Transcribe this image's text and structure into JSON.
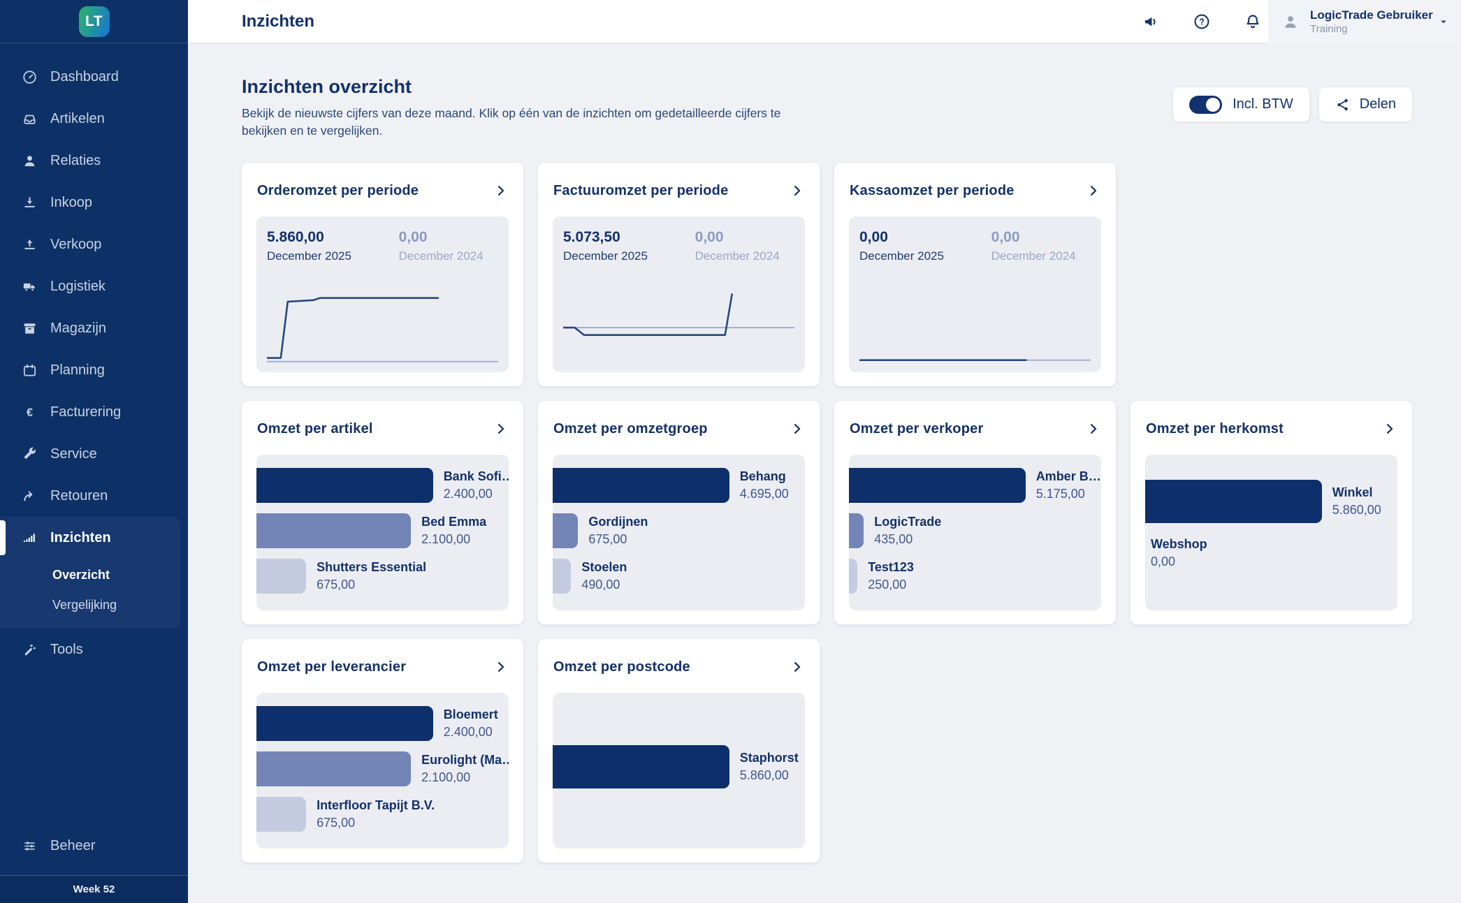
{
  "app": {
    "logo_text": "LT"
  },
  "topbar": {
    "title": "Inzichten",
    "icons": [
      "megaphone-icon",
      "help-icon",
      "bell-icon"
    ],
    "user": {
      "name": "LogicTrade Gebruiker",
      "role": "Training"
    }
  },
  "sidebar": {
    "items": [
      {
        "label": "Dashboard",
        "icon": "dashboard-icon"
      },
      {
        "label": "Artikelen",
        "icon": "inbox-icon"
      },
      {
        "label": "Relaties",
        "icon": "person-icon"
      },
      {
        "label": "Inkoop",
        "icon": "download-icon"
      },
      {
        "label": "Verkoop",
        "icon": "upload-icon"
      },
      {
        "label": "Logistiek",
        "icon": "truck-icon"
      },
      {
        "label": "Magazijn",
        "icon": "archive-icon"
      },
      {
        "label": "Planning",
        "icon": "calendar-icon"
      },
      {
        "label": "Facturering",
        "icon": "euro-icon"
      },
      {
        "label": "Service",
        "icon": "wrench-icon"
      },
      {
        "label": "Retouren",
        "icon": "redo-icon"
      },
      {
        "label": "Inzichten",
        "icon": "bar-chart-icon",
        "active": true,
        "children": [
          {
            "label": "Overzicht",
            "active": true
          },
          {
            "label": "Vergelijking"
          }
        ]
      },
      {
        "label": "Tools",
        "icon": "wand-icon"
      }
    ],
    "bottom_item": {
      "label": "Beheer",
      "icon": "sliders-icon"
    },
    "week_label": "Week 52"
  },
  "page": {
    "title": "Inzichten overzicht",
    "description": "Bekijk de nieuwste cijfers van deze maand. Klik op één van de inzichten om gedetailleerde cijfers te bekijken en te vergelijken.",
    "controls": {
      "toggle_label": "Incl. BTW",
      "toggle_on": true,
      "share_label": "Delen"
    }
  },
  "cards": {
    "row1": [
      {
        "title": "Orderomzet per periode",
        "current": {
          "value": "5.860,00",
          "period": "December 2025"
        },
        "previous": {
          "value": "0,00",
          "period": "December 2024"
        },
        "sparkline": {
          "current": [
            [
              0,
              92
            ],
            [
              6,
              92
            ],
            [
              9,
              16
            ],
            [
              20,
              14
            ],
            [
              23,
              11
            ],
            [
              74,
              11
            ]
          ],
          "previous": [
            [
              0,
              97
            ],
            [
              100,
              97
            ]
          ]
        }
      },
      {
        "title": "Factuuromzet per periode",
        "current": {
          "value": "5.073,50",
          "period": "December 2025"
        },
        "previous": {
          "value": "0,00",
          "period": "December 2024"
        },
        "sparkline": {
          "current": [
            [
              0,
              51
            ],
            [
              5,
              51
            ],
            [
              9,
              61
            ],
            [
              70,
              61
            ],
            [
              73,
              6
            ]
          ],
          "previous": [
            [
              0,
              51
            ],
            [
              100,
              51
            ]
          ]
        }
      },
      {
        "title": "Kassaomzet per periode",
        "current": {
          "value": "0,00",
          "period": "December 2025"
        },
        "previous": {
          "value": "0,00",
          "period": "December 2024"
        },
        "sparkline": {
          "current": [
            [
              0,
              95
            ],
            [
              72,
              95
            ]
          ],
          "previous": [
            [
              0,
              95
            ],
            [
              100,
              95
            ]
          ]
        }
      }
    ],
    "row2": [
      {
        "title": "Omzet per artikel",
        "bars": [
          {
            "name": "Bank Sofi…",
            "value": 2400,
            "value_display": "2.400,00"
          },
          {
            "name": "Bed Emma",
            "value": 2100,
            "value_display": "2.100,00"
          },
          {
            "name": "Shutters Essential",
            "value": 675,
            "value_display": "675,00"
          }
        ]
      },
      {
        "title": "Omzet per omzetgroep",
        "bars": [
          {
            "name": "Behang",
            "value": 4695,
            "value_display": "4.695,00"
          },
          {
            "name": "Gordijnen",
            "value": 675,
            "value_display": "675,00"
          },
          {
            "name": "Stoelen",
            "value": 490,
            "value_display": "490,00"
          }
        ]
      },
      {
        "title": "Omzet per verkoper",
        "bars": [
          {
            "name": "Amber B…",
            "value": 5175,
            "value_display": "5.175,00"
          },
          {
            "name": "LogicTrade",
            "value": 435,
            "value_display": "435,00"
          },
          {
            "name": "Test123",
            "value": 250,
            "value_display": "250,00"
          }
        ]
      },
      {
        "title": "Omzet per herkomst",
        "bars": [
          {
            "name": "Winkel",
            "value": 5860,
            "value_display": "5.860,00"
          },
          {
            "name": "Webshop",
            "value": 0,
            "value_display": "0,00"
          }
        ]
      }
    ],
    "row3": [
      {
        "title": "Omzet per leverancier",
        "bars": [
          {
            "name": "Bloemert",
            "value": 2400,
            "value_display": "2.400,00"
          },
          {
            "name": "Eurolight (Ma…",
            "value": 2100,
            "value_display": "2.100,00"
          },
          {
            "name": "Interfloor Tapijt B.V.",
            "value": 675,
            "value_display": "675,00"
          }
        ]
      },
      {
        "title": "Omzet per postcode",
        "bars": [
          {
            "name": "Staphorst",
            "value": 5860,
            "value_display": "5.860,00"
          }
        ]
      }
    ]
  },
  "colors": {
    "sidebar_bg": "#0d3166",
    "accent": "#12316e",
    "bar_palette": [
      "#0d2f6b",
      "#7384b6",
      "#c4cbe0"
    ],
    "line_current": "#27477e",
    "line_previous": "#a7b2d4"
  }
}
